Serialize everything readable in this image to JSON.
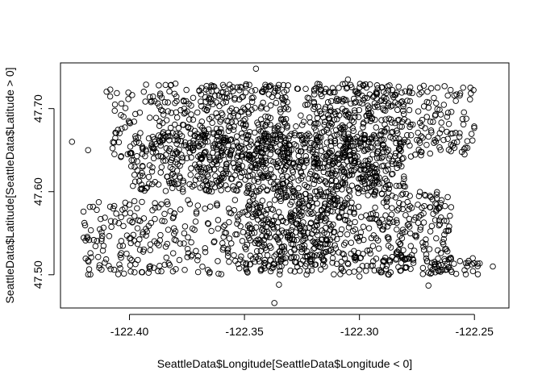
{
  "chart_data": {
    "type": "scatter",
    "title": "",
    "xlabel": "SeattleData$Longitude[SeattleData$Longitude < 0]",
    "ylabel": "SeattleData$Latitude[SeattleData$Latitude > 0]",
    "xlim": [
      -122.43,
      -122.235
    ],
    "ylim": [
      47.46,
      47.755
    ],
    "x_ticks": [
      -122.4,
      -122.35,
      -122.3,
      -122.25
    ],
    "x_tick_labels": [
      "-122.40",
      "-122.35",
      "-122.30",
      "-122.25"
    ],
    "y_ticks": [
      47.5,
      47.6,
      47.7
    ],
    "y_tick_labels": [
      "47.50",
      "47.60",
      "47.70"
    ],
    "grid": false,
    "legend": "none",
    "marker": "open-circle",
    "point_color": "#000000",
    "clusters": [
      {
        "x_range": [
          -122.41,
          -122.25
        ],
        "y_range": [
          47.64,
          47.73
        ],
        "count": 520
      },
      {
        "x_range": [
          -122.4,
          -122.29
        ],
        "y_range": [
          47.6,
          47.67
        ],
        "count": 520
      },
      {
        "x_range": [
          -122.33,
          -122.26
        ],
        "y_range": [
          47.5,
          47.6
        ],
        "count": 420
      },
      {
        "x_range": [
          -122.42,
          -122.33
        ],
        "y_range": [
          47.5,
          47.59
        ],
        "count": 320
      },
      {
        "x_range": [
          -122.35,
          -122.31
        ],
        "y_range": [
          47.51,
          47.6
        ],
        "count": 200
      },
      {
        "x_range": [
          -122.32,
          -122.28
        ],
        "y_range": [
          47.6,
          47.73
        ],
        "count": 320
      },
      {
        "x_range": [
          -122.37,
          -122.33
        ],
        "y_range": [
          47.6,
          47.73
        ],
        "count": 220
      },
      {
        "x_range": [
          -122.285,
          -122.245
        ],
        "y_range": [
          47.5,
          47.52
        ],
        "count": 50
      }
    ],
    "points": [
      {
        "x": -122.425,
        "y": 47.66
      },
      {
        "x": -122.345,
        "y": 47.748
      },
      {
        "x": -122.337,
        "y": 47.466
      },
      {
        "x": -122.335,
        "y": 47.488
      },
      {
        "x": -122.242,
        "y": 47.51
      },
      {
        "x": -122.42,
        "y": 47.576
      },
      {
        "x": -122.418,
        "y": 47.65
      },
      {
        "x": -122.3,
        "y": 47.498
      },
      {
        "x": -122.315,
        "y": 47.51
      },
      {
        "x": -122.27,
        "y": 47.487
      },
      {
        "x": -122.33,
        "y": 47.505
      },
      {
        "x": -122.305,
        "y": 47.735
      },
      {
        "x": -122.38,
        "y": 47.73
      },
      {
        "x": -122.262,
        "y": 47.672
      }
    ]
  }
}
